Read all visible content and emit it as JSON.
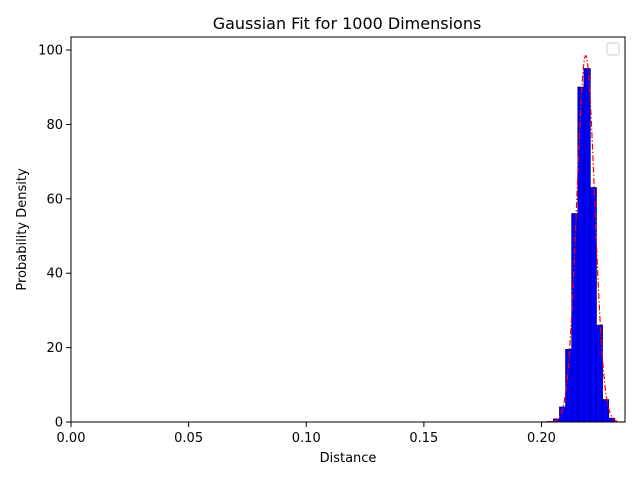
{
  "chart_data": {
    "type": "bar",
    "title": "Gaussian Fit for 1000 Dimensions",
    "xlabel": "Distance",
    "ylabel": "Probability Density",
    "xlim": [
      0.0,
      0.2355
    ],
    "ylim": [
      0,
      103.5
    ],
    "x_ticks": [
      "0.00",
      "0.05",
      "0.10",
      "0.15",
      "0.20"
    ],
    "x_tick_values": [
      0.0,
      0.05,
      0.1,
      0.15,
      0.2
    ],
    "y_ticks": [
      "0",
      "20",
      "40",
      "60",
      "80",
      "100"
    ],
    "y_tick_values": [
      0,
      20,
      40,
      60,
      80,
      100
    ],
    "bin_width": 0.0026,
    "bars": [
      {
        "x": 0.2038,
        "value": 0.1
      },
      {
        "x": 0.2064,
        "value": 0.8
      },
      {
        "x": 0.209,
        "value": 4.0
      },
      {
        "x": 0.2116,
        "value": 19.5
      },
      {
        "x": 0.2142,
        "value": 56.0
      },
      {
        "x": 0.2168,
        "value": 90.0
      },
      {
        "x": 0.2194,
        "value": 95.0
      },
      {
        "x": 0.222,
        "value": 63.0
      },
      {
        "x": 0.2246,
        "value": 26.0
      },
      {
        "x": 0.2272,
        "value": 6.0
      },
      {
        "x": 0.2298,
        "value": 1.0
      }
    ],
    "series": [
      {
        "type": "bar",
        "color": "#0000ff",
        "edge_color": "#00008b"
      },
      {
        "type": "line",
        "color": "#ff0000",
        "style": "dash-dot",
        "fit": "gaussian",
        "mean": 0.2188,
        "peak": 98.5
      }
    ],
    "legend": {
      "placement": "top-right",
      "entries": []
    },
    "grid": false
  }
}
